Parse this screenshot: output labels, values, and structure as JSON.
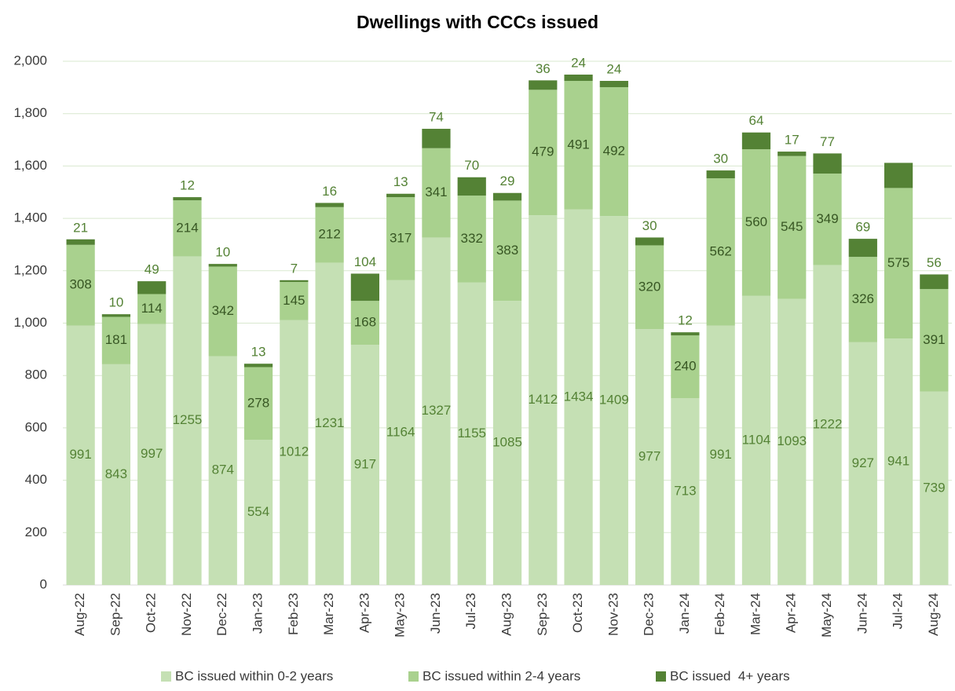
{
  "chart_data": {
    "type": "stacked-bar",
    "title": "Dwellings with CCCs issued",
    "categories": [
      "Aug-22",
      "Sep-22",
      "Oct-22",
      "Nov-22",
      "Dec-22",
      "Jan-23",
      "Feb-23",
      "Mar-23",
      "Apr-23",
      "May-23",
      "Jun-23",
      "Jul-23",
      "Aug-23",
      "Sep-23",
      "Oct-23",
      "Nov-23",
      "Dec-23",
      "Jan-24",
      "Feb-24",
      "Mar-24",
      "Apr-24",
      "May-24",
      "Jun-24",
      "Jul-24",
      "Aug-24"
    ],
    "series": [
      {
        "name": "BC issued within 0-2 years",
        "color": "#c5e0b4",
        "values": [
          991,
          843,
          997,
          1255,
          874,
          554,
          1012,
          1231,
          917,
          1164,
          1327,
          1155,
          1085,
          1412,
          1434,
          1409,
          977,
          713,
          991,
          1104,
          1093,
          1222,
          927,
          941,
          739
        ]
      },
      {
        "name": "BC issued within 2-4 years",
        "color": "#a9d18e",
        "values": [
          308,
          181,
          114,
          214,
          342,
          278,
          145,
          212,
          168,
          317,
          341,
          332,
          383,
          479,
          491,
          492,
          320,
          240,
          562,
          560,
          545,
          349,
          326,
          575,
          391
        ]
      },
      {
        "name": "BC issued  4+ years",
        "color": "#548235",
        "values": [
          21,
          10,
          49,
          12,
          10,
          13,
          7,
          16,
          104,
          13,
          74,
          70,
          29,
          36,
          24,
          24,
          30,
          12,
          30,
          64,
          17,
          77,
          69,
          96,
          56
        ],
        "value_labels": [
          "21",
          "10",
          "49",
          "12",
          "10",
          "13",
          "7",
          "16",
          "104",
          "13",
          "74",
          "70",
          "29",
          "36",
          "24",
          "24",
          "30",
          "12",
          "30",
          "64",
          "17",
          "77",
          "69",
          null,
          "56"
        ]
      }
    ],
    "ylim": [
      0,
      2000
    ],
    "yticks": [
      0,
      200,
      400,
      600,
      800,
      {
        "value": 1000,
        "label": "1,000"
      },
      {
        "value": 1200,
        "label": "1,200"
      },
      {
        "value": 1400,
        "label": "1,400"
      },
      {
        "value": 1600,
        "label": "1,600"
      },
      {
        "value": 1800,
        "label": "1,800"
      },
      {
        "value": 2000,
        "label": "2,000"
      }
    ],
    "grid": true,
    "legend": "bottom"
  }
}
